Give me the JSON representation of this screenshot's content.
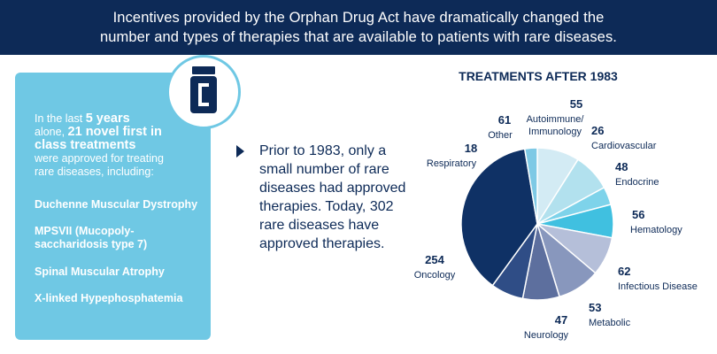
{
  "banner": {
    "line1": "Incentives provided by the Orphan Drug Act have dramatically changed the",
    "line2": "number and types of therapies that are available to patients with rare diseases."
  },
  "card": {
    "intro_prefix_1": "In the last ",
    "intro_strong_1": "5 years",
    "intro_prefix_2": "alone, ",
    "intro_strong_2": "21 novel first in class treatments",
    "intro_suffix": "were approved for treating rare diseases, including:",
    "conditions": [
      "Duchenne Muscular Dystrophy",
      "MPSVII (Mucopoly-saccharidosis type 7)",
      "Spinal Muscular Atrophy",
      "X-linked Hypephosphatemia"
    ],
    "icon": "medicine-bottle-icon"
  },
  "middle": {
    "text": "Prior to 1983, only a small number of rare diseases had approved therapies. Today, 302 rare diseases have approved therapies."
  },
  "colors": {
    "navy": "#0d2a57",
    "accent": "#6fc8e4"
  },
  "chart_data": {
    "type": "pie",
    "title": "TREATMENTS AFTER 1983",
    "categories": [
      "Other",
      "Autoimmune/ Immunology",
      "Cardiovascular",
      "Endocrine",
      "Hematology",
      "Infectious Disease",
      "Metabolic",
      "Neurology",
      "Oncology",
      "Respiratory"
    ],
    "values": [
      61,
      55,
      26,
      48,
      56,
      62,
      53,
      47,
      254,
      18
    ],
    "colors": [
      "#d3ebf4",
      "#b2e1ee",
      "#7ed3ea",
      "#40c0e0",
      "#b5bfd9",
      "#8897bd",
      "#5d6f9e",
      "#2f4d86",
      "#0f3165",
      "#7ec9e5"
    ],
    "legend": "none"
  }
}
